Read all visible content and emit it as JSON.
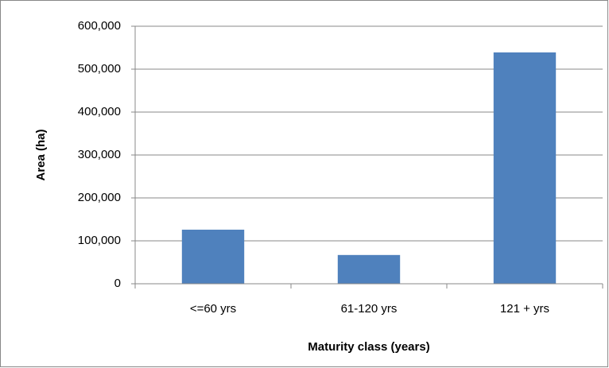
{
  "chart_data": {
    "type": "bar",
    "x_label": "Maturity class (years)",
    "y_label": "Area (ha)",
    "categories": [
      "<=60 yrs",
      "61-120 yrs",
      "121 + yrs"
    ],
    "values": [
      126000,
      67000,
      539000
    ],
    "color": "#4f81bd",
    "ylim": [
      0,
      600000
    ],
    "yticks": [
      0,
      {
        "value": 100000,
        "label": "100,000"
      },
      {
        "value": 200000,
        "label": "200,000"
      },
      {
        "value": 300000,
        "label": "300,000"
      },
      {
        "value": 400000,
        "label": "400,000"
      },
      {
        "value": 500000,
        "label": "500,000"
      },
      {
        "value": 600000,
        "label": "600,000"
      }
    ],
    "grid": true
  }
}
